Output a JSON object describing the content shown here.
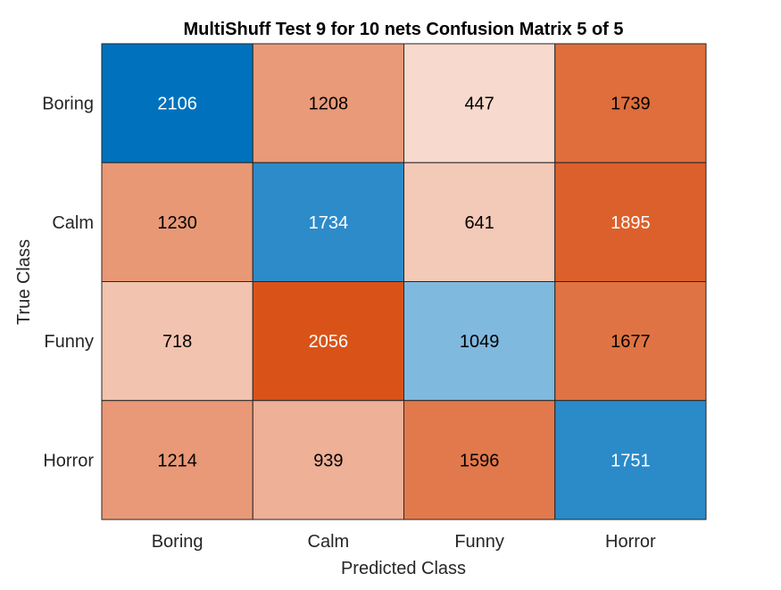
{
  "chart_data": {
    "type": "heatmap",
    "title": "MultiShuff Test 9 for 10 nets Confusion Matrix 5 of 5",
    "xlabel": "Predicted Class",
    "ylabel": "True Class",
    "x_categories": [
      "Boring",
      "Calm",
      "Funny",
      "Horror"
    ],
    "y_categories": [
      "Boring",
      "Calm",
      "Funny",
      "Horror"
    ],
    "values": [
      [
        2106,
        1208,
        447,
        1739
      ],
      [
        1230,
        1734,
        641,
        1895
      ],
      [
        718,
        2056,
        1049,
        1677
      ],
      [
        1214,
        939,
        1596,
        1751
      ]
    ],
    "colors": {
      "diagonal_strong": "#0072bd",
      "diagonal_light": "#ffffff",
      "offdiag_strong": "#d95319",
      "offdiag_light": "#ffffff",
      "grid": "#262626",
      "text_dark": "#000000",
      "text_light": "#ffffff"
    }
  }
}
